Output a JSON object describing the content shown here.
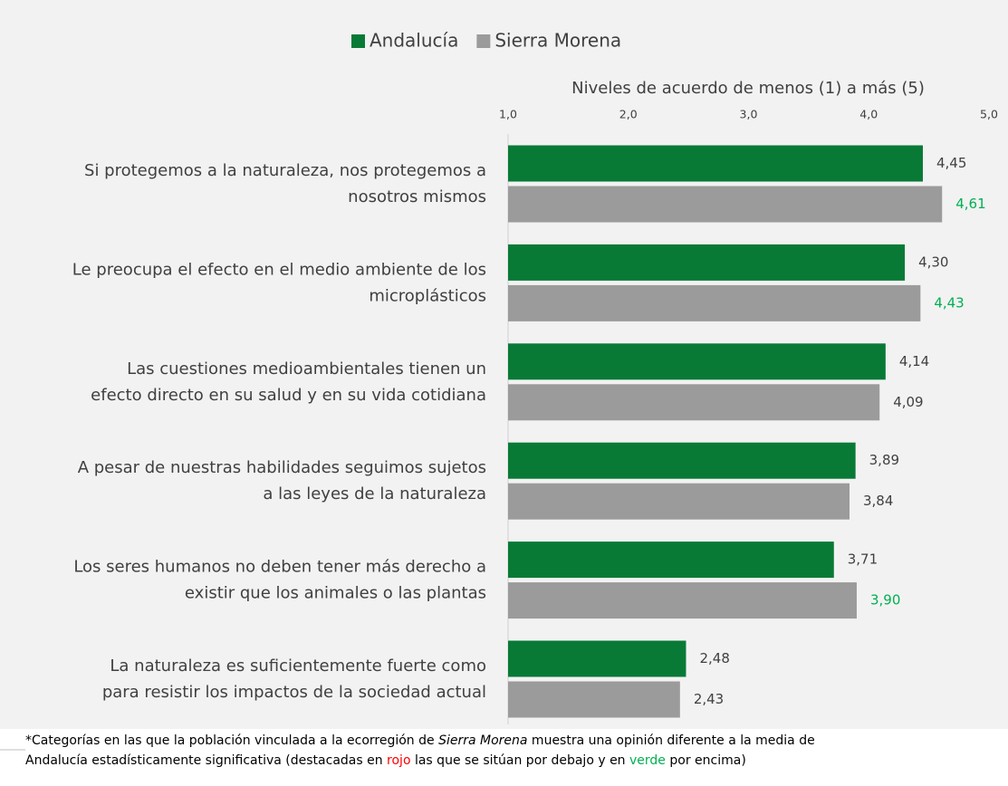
{
  "chart_data": {
    "type": "barh",
    "legend": "top",
    "xlabel": "Niveles de acuerdo de menos (1) a más (5)",
    "xlim": [
      1,
      5
    ],
    "xticks": [
      {
        "value": 1,
        "label": "1,0"
      },
      {
        "value": 2,
        "label": "2,0"
      },
      {
        "value": 3,
        "label": "3,0"
      },
      {
        "value": 4,
        "label": "4,0"
      },
      {
        "value": 5,
        "label": "5,0"
      }
    ],
    "categories": [
      [
        "Si protegemos a la naturaleza, nos protegemos a",
        "nosotros mismos"
      ],
      [
        "Le preocupa el efecto en el medio ambiente de los",
        "microplásticos"
      ],
      [
        "Las cuestiones medioambientales tienen un",
        "efecto directo en su salud y en su vida cotidiana"
      ],
      [
        "A pesar de nuestras habilidades seguimos sujetos",
        "a las leyes de la naturaleza"
      ],
      [
        "Los seres humanos no deben tener más derecho a",
        "existir que los animales o las plantas"
      ],
      [
        "La naturaleza es suficientemente fuerte como",
        "para resistir los impactos de la sociedad actual"
      ]
    ],
    "series": [
      {
        "name": "Andalucía",
        "color": "#087a36",
        "values": [
          4.45,
          4.3,
          4.14,
          3.89,
          3.71,
          2.48
        ],
        "value_labels": [
          "4,45",
          "4,30",
          "4,14",
          "3,89",
          "3,71",
          "2,48"
        ],
        "value_label_colors": [
          "#404040",
          "#404040",
          "#404040",
          "#404040",
          "#404040",
          "#404040"
        ]
      },
      {
        "name": "Sierra Morena",
        "color": "#9b9b9b",
        "values": [
          4.61,
          4.43,
          4.09,
          3.84,
          3.9,
          2.43
        ],
        "value_labels": [
          "4,61",
          "4,43",
          "4,09",
          "3,84",
          "3,90",
          "2,43"
        ],
        "value_label_colors": [
          "#00b050",
          "#00b050",
          "#404040",
          "#404040",
          "#00b050",
          "#404040"
        ]
      }
    ],
    "note": [
      [
        "*Categorías en las que la población vinculada a la ecorregión de ",
        "Sierra Morena",
        " muestra una opinión diferente a la media de"
      ],
      [
        "Andalucía estadísticamente significativa (destacadas en ",
        "rojo",
        " las que se sitúan por debajo y en ",
        "verde",
        " por encima)"
      ]
    ]
  }
}
